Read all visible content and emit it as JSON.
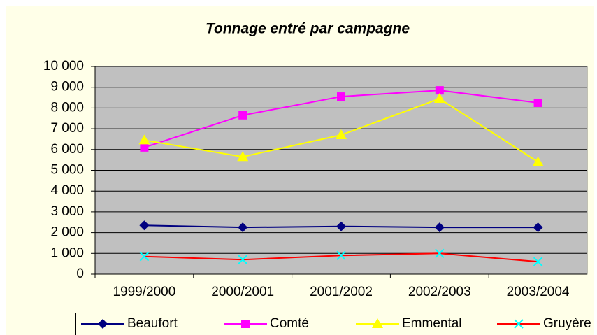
{
  "chart_data": {
    "type": "line",
    "title": "Tonnage entré par campagne",
    "categories": [
      "1999/2000",
      "2000/2001",
      "2001/2002",
      "2002/2003",
      "2003/2004"
    ],
    "series": [
      {
        "name": "Beaufort",
        "color": "#000080",
        "marker": "diamond",
        "marker_color": "#000080",
        "values": [
          2350,
          2250,
          2300,
          2250,
          2250
        ]
      },
      {
        "name": "Comté",
        "color": "#ff00ff",
        "marker": "square",
        "marker_color": "#ff00ff",
        "values": [
          6100,
          7650,
          8550,
          8850,
          8250
        ]
      },
      {
        "name": "Emmental",
        "color": "#ffff00",
        "marker": "triangle",
        "marker_color": "#ffff00",
        "values": [
          6450,
          5650,
          6700,
          8450,
          5400
        ]
      },
      {
        "name": "Gruyère",
        "color": "#ff0000",
        "marker": "x",
        "marker_color": "#00ffff",
        "values": [
          850,
          700,
          900,
          1000,
          600
        ]
      }
    ],
    "ylim": [
      0,
      10000
    ],
    "yticks": [
      0,
      {
        "value": 1000,
        "label": "1 000"
      },
      {
        "value": 2000,
        "label": "2 000"
      },
      {
        "value": 3000,
        "label": "3 000"
      },
      {
        "value": 4000,
        "label": "4 000"
      },
      {
        "value": 5000,
        "label": "5 000"
      },
      {
        "value": 6000,
        "label": "6 000"
      },
      {
        "value": 7000,
        "label": "7 000"
      },
      {
        "value": 8000,
        "label": "8 000"
      },
      {
        "value": 9000,
        "label": "9 000"
      },
      {
        "value": 10000,
        "label": "10 000"
      }
    ],
    "grid": true,
    "plot_background": "#c0c0c0",
    "legend": "bottom"
  }
}
